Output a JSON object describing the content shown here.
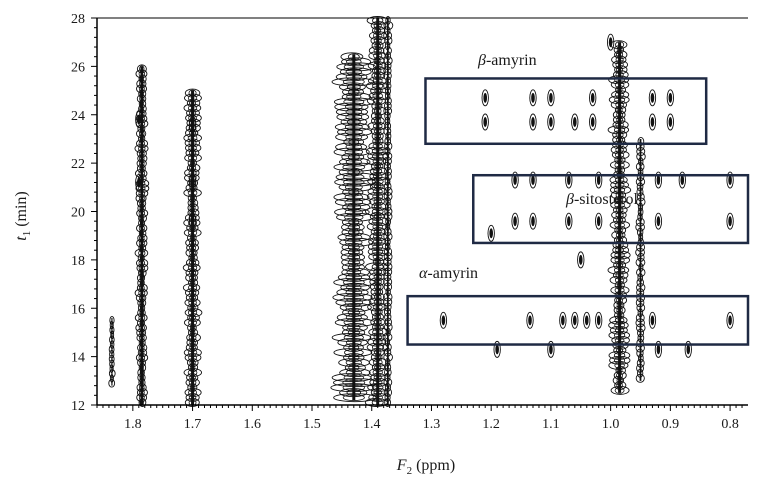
{
  "chart_data": {
    "type": "contour",
    "xlabel": {
      "sym": "F",
      "sub": "2",
      "unit": " (ppm)"
    },
    "ylabel": {
      "sym": "t",
      "sub": "1",
      "unit": " (min)"
    },
    "xlim": [
      1.86,
      0.77
    ],
    "ylim": [
      12,
      28
    ],
    "x_reversed": true,
    "x_ticks": [
      1.8,
      1.7,
      1.6,
      1.5,
      1.4,
      1.3,
      1.2,
      1.1,
      1.0,
      0.9,
      0.8
    ],
    "x_tick_labels": [
      "1.8",
      "1.7",
      "1.6",
      "1.5",
      "1.4",
      "1.3",
      "1.2",
      "1.1",
      "1.0",
      "0.9",
      "0.8"
    ],
    "y_ticks": [
      12,
      14,
      16,
      18,
      20,
      22,
      24,
      26,
      28
    ],
    "y_tick_labels": [
      "12",
      "14",
      "16",
      "18",
      "20",
      "22",
      "24",
      "26",
      "28"
    ],
    "colors": {
      "contour": "#111111",
      "box": "#1f2a44"
    },
    "annotations": [
      {
        "greek": "β",
        "text": "-amyrin",
        "x_range": [
          1.31,
          0.84
        ],
        "y_range": [
          22.8,
          25.5
        ]
      },
      {
        "greek": "β",
        "text": "-sitosterol",
        "x_range": [
          1.23,
          0.77
        ],
        "y_range": [
          18.7,
          21.5
        ]
      },
      {
        "greek": "α",
        "text": "-amyrin",
        "x_range": [
          1.34,
          0.77
        ],
        "y_range": [
          14.5,
          16.5
        ]
      }
    ],
    "ridges": [
      {
        "ppm": 1.835,
        "t_from": 12.8,
        "t_to": 15.6,
        "width": 0.004
      },
      {
        "ppm": 1.785,
        "t_from": 12.0,
        "t_to": 26.0,
        "width": 0.009
      },
      {
        "ppm": 1.7,
        "t_from": 12.0,
        "t_to": 25.0,
        "width": 0.012
      },
      {
        "ppm": 1.43,
        "t_from": 12.2,
        "t_to": 26.5,
        "width": 0.03
      },
      {
        "ppm": 1.39,
        "t_from": 12.0,
        "t_to": 28.0,
        "width": 0.015
      },
      {
        "ppm": 1.373,
        "t_from": 12.0,
        "t_to": 28.0,
        "width": 0.006
      },
      {
        "ppm": 0.985,
        "t_from": 12.5,
        "t_to": 27.0,
        "width": 0.014
      },
      {
        "ppm": 0.95,
        "t_from": 13.0,
        "t_to": 23.0,
        "width": 0.006
      }
    ],
    "peaks": [
      {
        "ppm": 1.21,
        "t": 24.7
      },
      {
        "ppm": 1.21,
        "t": 23.7
      },
      {
        "ppm": 1.13,
        "t": 24.7
      },
      {
        "ppm": 1.13,
        "t": 23.7
      },
      {
        "ppm": 1.1,
        "t": 24.7
      },
      {
        "ppm": 1.1,
        "t": 23.7
      },
      {
        "ppm": 1.06,
        "t": 23.7
      },
      {
        "ppm": 1.03,
        "t": 24.7
      },
      {
        "ppm": 1.03,
        "t": 23.7
      },
      {
        "ppm": 0.93,
        "t": 24.7
      },
      {
        "ppm": 0.93,
        "t": 23.7
      },
      {
        "ppm": 0.9,
        "t": 24.7
      },
      {
        "ppm": 0.9,
        "t": 23.7
      },
      {
        "ppm": 1.16,
        "t": 21.3
      },
      {
        "ppm": 1.16,
        "t": 19.6
      },
      {
        "ppm": 1.13,
        "t": 21.3
      },
      {
        "ppm": 1.13,
        "t": 19.6
      },
      {
        "ppm": 1.07,
        "t": 21.3
      },
      {
        "ppm": 1.07,
        "t": 19.6
      },
      {
        "ppm": 1.02,
        "t": 21.3
      },
      {
        "ppm": 1.02,
        "t": 19.6
      },
      {
        "ppm": 0.92,
        "t": 21.3
      },
      {
        "ppm": 0.92,
        "t": 19.6
      },
      {
        "ppm": 0.88,
        "t": 21.3
      },
      {
        "ppm": 0.8,
        "t": 21.3
      },
      {
        "ppm": 0.8,
        "t": 19.6
      },
      {
        "ppm": 1.28,
        "t": 15.5
      },
      {
        "ppm": 1.135,
        "t": 15.5
      },
      {
        "ppm": 1.08,
        "t": 15.5
      },
      {
        "ppm": 1.06,
        "t": 15.5
      },
      {
        "ppm": 1.04,
        "t": 15.5
      },
      {
        "ppm": 1.02,
        "t": 15.5
      },
      {
        "ppm": 0.93,
        "t": 15.5
      },
      {
        "ppm": 0.8,
        "t": 15.5
      },
      {
        "ppm": 1.19,
        "t": 14.3
      },
      {
        "ppm": 1.1,
        "t": 14.3
      },
      {
        "ppm": 0.87,
        "t": 14.3
      },
      {
        "ppm": 0.92,
        "t": 14.3
      },
      {
        "ppm": 1.2,
        "t": 19.1
      },
      {
        "ppm": 1.0,
        "t": 27.0
      },
      {
        "ppm": 1.05,
        "t": 18.0
      },
      {
        "ppm": 1.79,
        "t": 23.8
      },
      {
        "ppm": 1.7,
        "t": 23.6
      },
      {
        "ppm": 1.7,
        "t": 19.6
      },
      {
        "ppm": 1.7,
        "t": 21.2
      },
      {
        "ppm": 1.79,
        "t": 21.2
      }
    ]
  }
}
